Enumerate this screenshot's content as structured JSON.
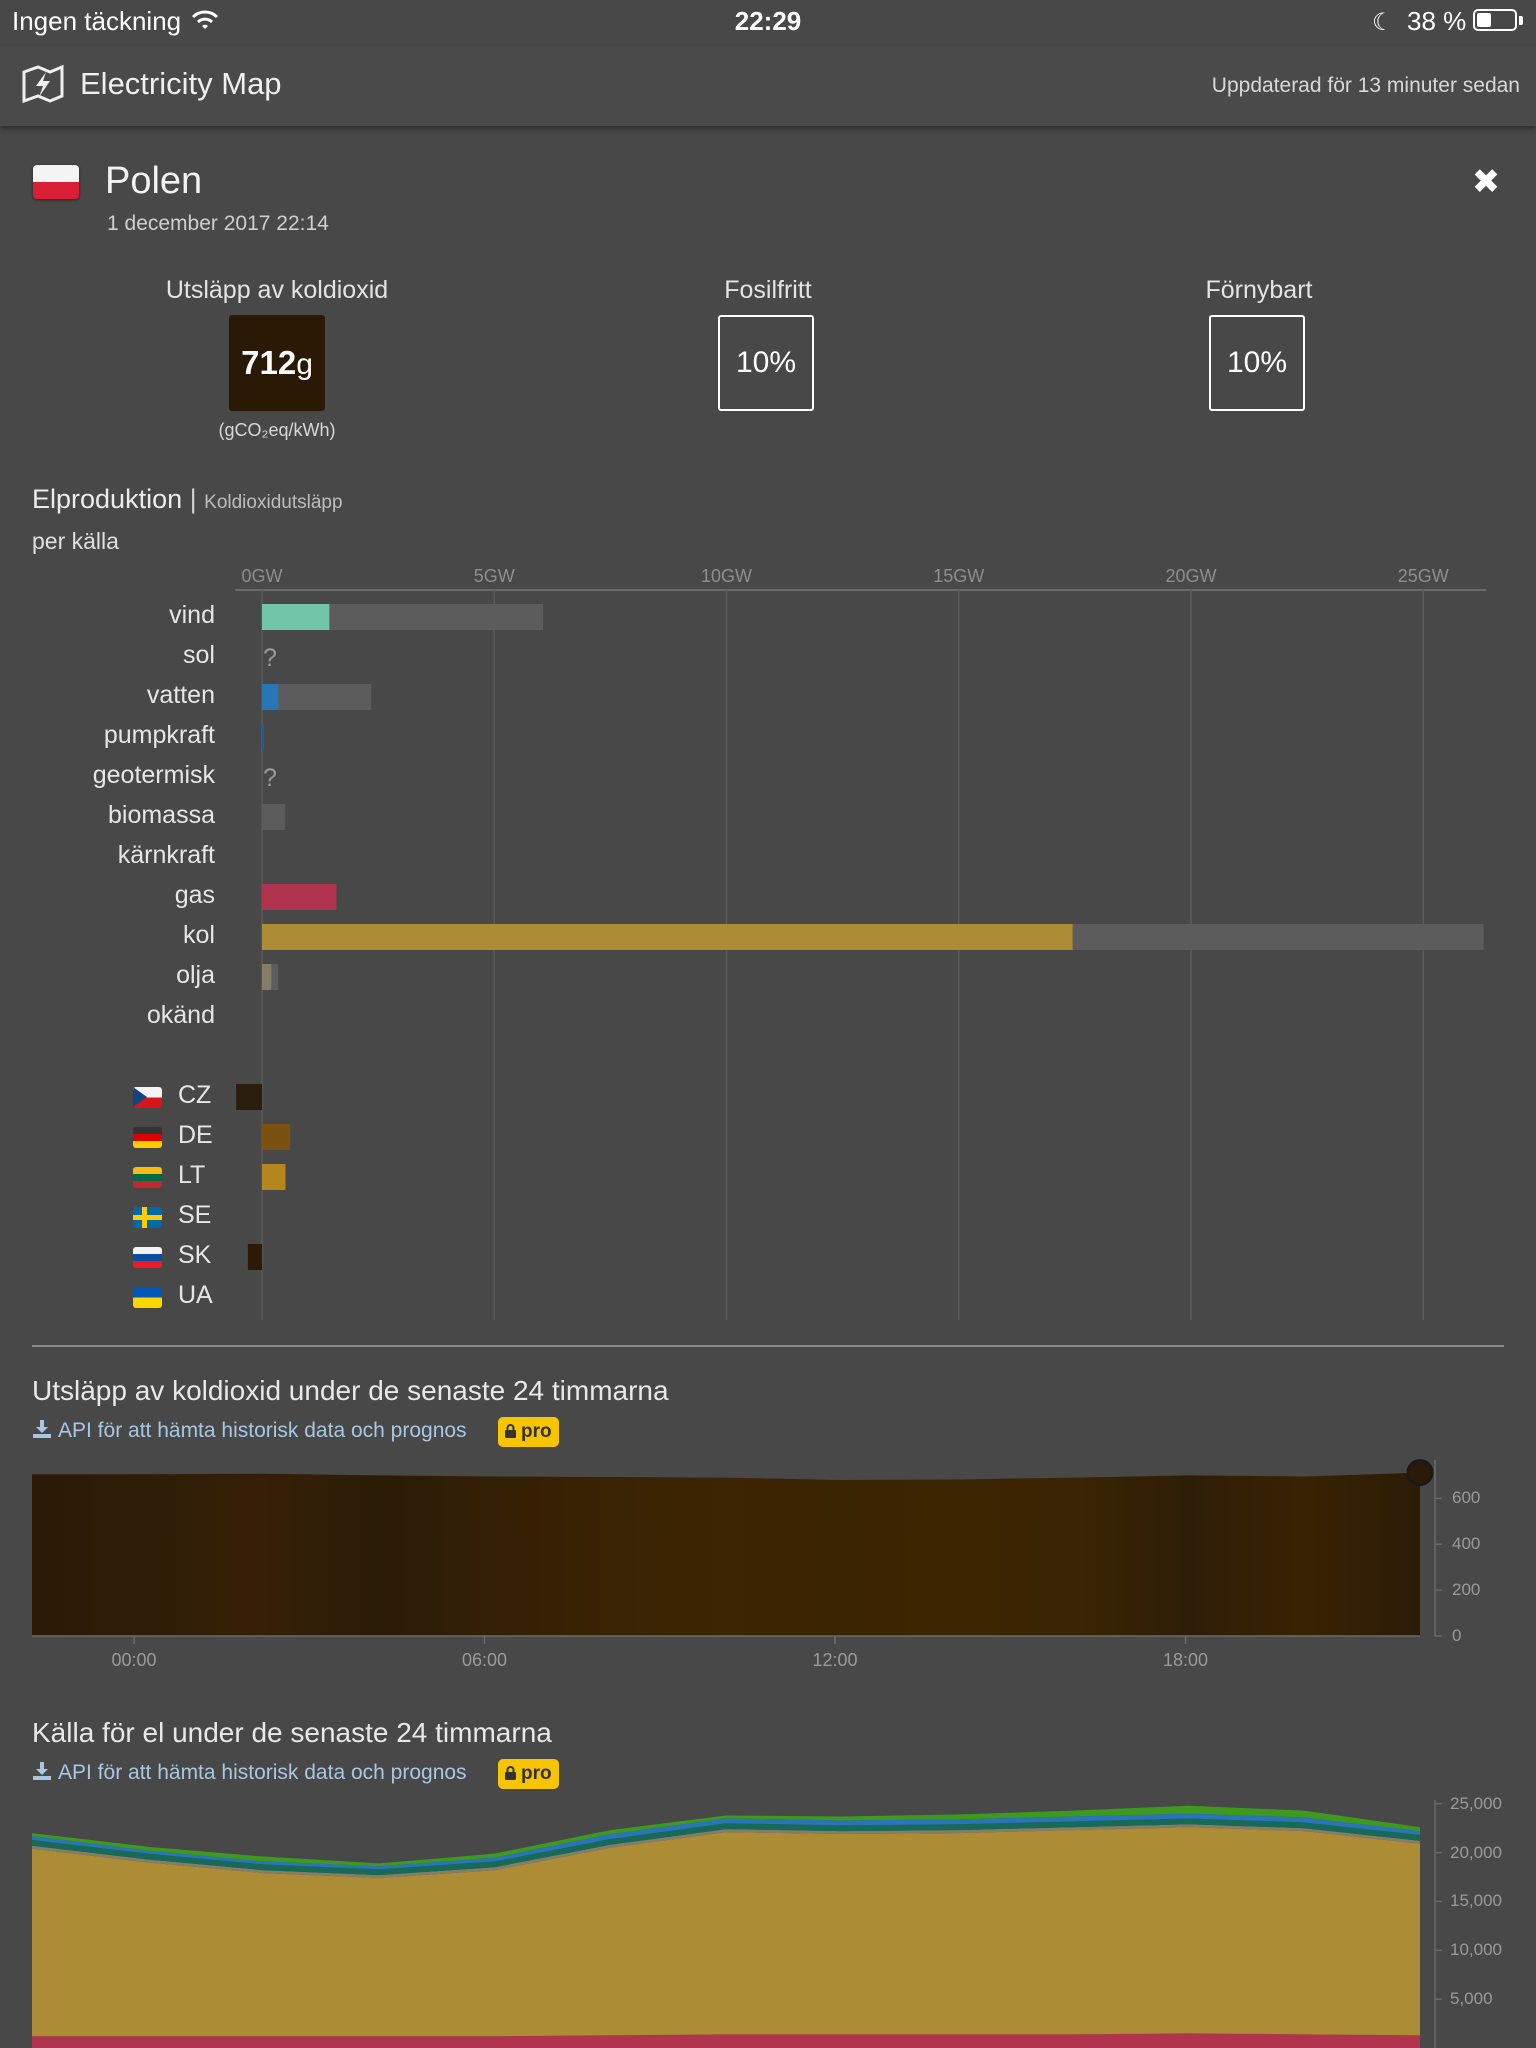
{
  "status_bar": {
    "carrier": "Ingen täckning",
    "time": "22:29",
    "battery_pct": "38 %",
    "battery_level": 0.38
  },
  "app": {
    "title": "Electricity Map",
    "updated": "Uppdaterad för 13 minuter sedan"
  },
  "country": {
    "name": "Polen",
    "datetime": "1 december 2017 22:14"
  },
  "metrics": {
    "co2_label": "Utsläpp av koldioxid",
    "co2_value": "712",
    "co2_unit_suffix": "g",
    "co2_unit": "(gCO₂eq/kWh)",
    "fossil_free_label": "Fosilfritt",
    "fossil_free_value": "10%",
    "renewable_label": "Förnybart",
    "renewable_value": "10%"
  },
  "production": {
    "title": "Elproduktion",
    "separator": "|",
    "alt_title": "Koldioxidutsläpp",
    "subtitle": "per källa",
    "axis_ticks": [
      "0GW",
      "5GW",
      "10GW",
      "15GW",
      "20GW",
      "25GW"
    ],
    "axis_max_gw": 25,
    "sources": [
      {
        "label": "vind",
        "value_gw": 1.45,
        "capacity_gw": 6.05,
        "color": "#72c5a9",
        "unknown": false
      },
      {
        "label": "sol",
        "value_gw": 0,
        "capacity_gw": 0,
        "color": "#f2d045",
        "unknown": true,
        "unknown_mark": "?"
      },
      {
        "label": "vatten",
        "value_gw": 0.35,
        "capacity_gw": 2.35,
        "color": "#2a74b8",
        "unknown": false
      },
      {
        "label": "pumpkraft",
        "value_gw": 0.03,
        "capacity_gw": 0,
        "color": "#1d5b99",
        "unknown": false
      },
      {
        "label": "geotermisk",
        "value_gw": 0,
        "capacity_gw": 0,
        "color": "#c0392b",
        "unknown": true,
        "unknown_mark": "?"
      },
      {
        "label": "biomassa",
        "value_gw": 0,
        "capacity_gw": 0.5,
        "color": "#166a57",
        "unknown": false
      },
      {
        "label": "kärnkraft",
        "value_gw": 0,
        "capacity_gw": 0,
        "color": "#aea0d4",
        "unknown": false
      },
      {
        "label": "gas",
        "value_gw": 1.6,
        "capacity_gw": 1.6,
        "color": "#b0344d",
        "unknown": false
      },
      {
        "label": "kol",
        "value_gw": 17.45,
        "capacity_gw": 26.3,
        "color": "#ac8c35",
        "unknown": false
      },
      {
        "label": "olja",
        "value_gw": 0.2,
        "capacity_gw": 0.35,
        "color": "#867d66",
        "unknown": false
      },
      {
        "label": "okänd",
        "value_gw": 0,
        "capacity_gw": 0,
        "color": "#acacac",
        "unknown": false
      }
    ],
    "exchanges": [
      {
        "code": "CZ",
        "value_gw": -0.55,
        "color": "#2b1d0c"
      },
      {
        "code": "DE",
        "value_gw": 0.6,
        "color": "#7a5110"
      },
      {
        "code": "LT",
        "value_gw": 0.5,
        "color": "#b5861c"
      },
      {
        "code": "SE",
        "value_gw": 0,
        "color": "#555555"
      },
      {
        "code": "SK",
        "value_gw": -0.3,
        "color": "#2b1a08"
      },
      {
        "code": "UA",
        "value_gw": 0,
        "color": "#555555"
      }
    ]
  },
  "co2_history": {
    "title": "Utsläpp av koldioxid under de senaste 24 timmarna",
    "api_link": "API för att hämta historisk data och prognos",
    "pro": "pro",
    "y_ticks": [
      "600",
      "400",
      "200",
      "0"
    ],
    "x_ticks": [
      "00:00",
      "06:00",
      "12:00",
      "18:00"
    ]
  },
  "mix_history": {
    "title": "Källa för el under de senaste 24 timmarna",
    "api_link": "API för att hämta historisk data och prognos",
    "pro": "pro",
    "y_ticks": [
      "25,000",
      "20,000",
      "15,000",
      "10,000",
      "5,000"
    ]
  },
  "chart_data": [
    {
      "type": "bar",
      "title": "Elproduktion",
      "xlabel": "",
      "ylabel": "",
      "categories": [
        "vind",
        "sol",
        "vatten",
        "pumpkraft",
        "geotermisk",
        "biomassa",
        "kärnkraft",
        "gas",
        "kol",
        "olja",
        "okänd",
        "CZ",
        "DE",
        "LT",
        "SE",
        "SK",
        "UA"
      ],
      "series": [
        {
          "values": [
            1.45,
            0,
            0.35,
            0.03,
            0,
            0,
            0,
            1.6,
            17.45,
            0.2,
            0,
            -0.55,
            0.6,
            0.5,
            0,
            -0.3,
            0
          ]
        },
        {
          "values": [
            6.05,
            0,
            2.35,
            0,
            0,
            0.5,
            0,
            1.6,
            26.3,
            0.35,
            0,
            null,
            null,
            null,
            null,
            null,
            null
          ]
        }
      ],
      "xlim": [
        0,
        26.3
      ],
      "grid": true
    },
    {
      "type": "area",
      "title": "Utsläpp av koldioxid under de senaste 24 timmarna",
      "x": [
        "22:14",
        "00:00",
        "02:00",
        "04:00",
        "06:00",
        "08:00",
        "10:00",
        "12:00",
        "14:00",
        "16:00",
        "18:00",
        "20:00",
        "22:14"
      ],
      "values": [
        705,
        705,
        707,
        700,
        695,
        693,
        690,
        680,
        682,
        690,
        700,
        695,
        712
      ],
      "ylim": [
        0,
        780
      ],
      "grid": false
    },
    {
      "type": "area",
      "title": "Källa för el under de senaste 24 timmarna",
      "x": [
        "22:14",
        "00:00",
        "02:00",
        "04:00",
        "06:00",
        "08:00",
        "10:00",
        "12:00",
        "14:00",
        "16:00",
        "18:00",
        "20:00",
        "22:14"
      ],
      "series": [
        {
          "name": "gas",
          "values": [
            1200,
            1200,
            1200,
            1200,
            1200,
            1300,
            1400,
            1400,
            1400,
            1400,
            1500,
            1400,
            1300
          ]
        },
        {
          "name": "kol",
          "values": [
            19200,
            17800,
            16700,
            16200,
            17000,
            19200,
            20700,
            20500,
            20600,
            20900,
            21100,
            20800,
            19600
          ]
        },
        {
          "name": "olja",
          "values": [
            300,
            300,
            300,
            300,
            300,
            300,
            300,
            300,
            300,
            300,
            300,
            300,
            300
          ]
        },
        {
          "name": "biomassa",
          "values": [
            600,
            600,
            600,
            600,
            600,
            600,
            600,
            600,
            600,
            600,
            600,
            600,
            600
          ]
        },
        {
          "name": "vatten",
          "values": [
            400,
            300,
            300,
            300,
            400,
            500,
            500,
            500,
            500,
            500,
            500,
            500,
            400
          ]
        },
        {
          "name": "vind",
          "values": [
            300,
            400,
            500,
            300,
            400,
            400,
            300,
            400,
            500,
            600,
            800,
            700,
            400
          ]
        }
      ],
      "ylim": [
        0,
        26000
      ],
      "grid": false
    }
  ]
}
